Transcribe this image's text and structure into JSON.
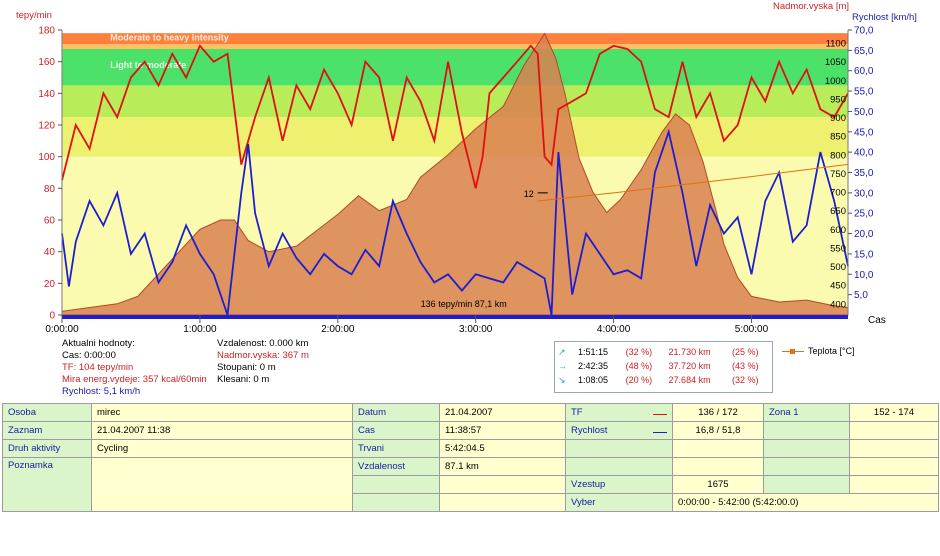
{
  "chart_data": {
    "type": "line",
    "x_label": "Cas",
    "x_ticks": [
      "0:00:00",
      "1:00:00",
      "2:00:00",
      "3:00:00",
      "4:00:00",
      "5:00:00"
    ],
    "x_range_hours": [
      0,
      5.7
    ],
    "axes": {
      "left": {
        "label": "tepy/min",
        "range": [
          0,
          180
        ],
        "ticks": [
          0,
          20,
          40,
          60,
          80,
          100,
          120,
          140,
          160,
          180
        ]
      },
      "right_altitude": {
        "label": "Nadmor.vyska [m]",
        "ticks": [
          400,
          450,
          500,
          550,
          600,
          650,
          700,
          750,
          800,
          850,
          900,
          950,
          1000,
          1050,
          1100
        ],
        "range": [
          370,
          1135
        ]
      },
      "right_speed": {
        "label": "Rychlost [km/h]",
        "range": [
          0,
          70
        ],
        "tick_labels": [
          "5,0",
          "10,0",
          "15,0",
          "20,0",
          "25,0",
          "30,0",
          "35,0",
          "40,0",
          "45,0",
          "50,0",
          "55,0",
          "60,0",
          "65,0",
          "70,0"
        ]
      }
    },
    "zones": [
      {
        "name": "Moderate to heavy intensity",
        "from": 171,
        "to": 178,
        "color": "#ff7f3c"
      },
      {
        "name": "",
        "from": 168,
        "to": 171,
        "color": "#ffc060"
      },
      {
        "name": "Light to moderate",
        "from": 145,
        "to": 168,
        "color": "#4ce26a"
      },
      {
        "name": "",
        "from": 125,
        "to": 145,
        "color": "#b8ec58"
      },
      {
        "name": "",
        "from": 100,
        "to": 125,
        "color": "#eef070"
      },
      {
        "name": "",
        "from": 0,
        "to": 100,
        "color": "#fbfbb0"
      }
    ],
    "series": [
      {
        "name": "Nadmor.vyska",
        "axis": "right_altitude",
        "color": "#d98050",
        "points": [
          [
            0,
            380
          ],
          [
            0.4,
            400
          ],
          [
            0.55,
            420
          ],
          [
            0.8,
            520
          ],
          [
            1.0,
            600
          ],
          [
            1.15,
            625
          ],
          [
            1.25,
            625
          ],
          [
            1.35,
            570
          ],
          [
            1.5,
            540
          ],
          [
            1.7,
            555
          ],
          [
            2.0,
            640
          ],
          [
            2.15,
            690
          ],
          [
            2.3,
            650
          ],
          [
            2.5,
            680
          ],
          [
            2.6,
            740
          ],
          [
            2.8,
            800
          ],
          [
            3.0,
            870
          ],
          [
            3.2,
            930
          ],
          [
            3.35,
            1040
          ],
          [
            3.5,
            1125
          ],
          [
            3.58,
            1060
          ],
          [
            3.65,
            960
          ],
          [
            3.75,
            790
          ],
          [
            3.85,
            700
          ],
          [
            3.95,
            645
          ],
          [
            4.05,
            680
          ],
          [
            4.2,
            760
          ],
          [
            4.35,
            860
          ],
          [
            4.45,
            910
          ],
          [
            4.55,
            880
          ],
          [
            4.65,
            780
          ],
          [
            4.75,
            640
          ],
          [
            4.8,
            560
          ],
          [
            4.9,
            470
          ],
          [
            5.0,
            420
          ],
          [
            5.2,
            405
          ],
          [
            5.4,
            410
          ],
          [
            5.6,
            395
          ],
          [
            5.7,
            390
          ]
        ]
      },
      {
        "name": "TF",
        "axis": "left",
        "color": "#e01010",
        "points": [
          [
            0,
            85
          ],
          [
            0.1,
            120
          ],
          [
            0.2,
            105
          ],
          [
            0.3,
            140
          ],
          [
            0.4,
            125
          ],
          [
            0.5,
            150
          ],
          [
            0.6,
            160
          ],
          [
            0.7,
            145
          ],
          [
            0.8,
            165
          ],
          [
            0.9,
            150
          ],
          [
            1.0,
            170
          ],
          [
            1.1,
            160
          ],
          [
            1.2,
            165
          ],
          [
            1.3,
            95
          ],
          [
            1.4,
            125
          ],
          [
            1.5,
            150
          ],
          [
            1.6,
            110
          ],
          [
            1.7,
            145
          ],
          [
            1.8,
            130
          ],
          [
            1.9,
            155
          ],
          [
            2.0,
            140
          ],
          [
            2.1,
            120
          ],
          [
            2.2,
            160
          ],
          [
            2.3,
            150
          ],
          [
            2.4,
            110
          ],
          [
            2.5,
            150
          ],
          [
            2.6,
            135
          ],
          [
            2.7,
            110
          ],
          [
            2.8,
            160
          ],
          [
            2.9,
            115
          ],
          [
            3.0,
            80
          ],
          [
            3.05,
            100
          ],
          [
            3.1,
            140
          ],
          [
            3.2,
            150
          ],
          [
            3.3,
            160
          ],
          [
            3.4,
            170
          ],
          [
            3.45,
            165
          ],
          [
            3.5,
            100
          ],
          [
            3.55,
            95
          ],
          [
            3.6,
            130
          ],
          [
            3.7,
            135
          ],
          [
            3.8,
            140
          ],
          [
            3.9,
            165
          ],
          [
            4.0,
            170
          ],
          [
            4.1,
            168
          ],
          [
            4.2,
            160
          ],
          [
            4.3,
            130
          ],
          [
            4.4,
            125
          ],
          [
            4.5,
            160
          ],
          [
            4.6,
            125
          ],
          [
            4.7,
            140
          ],
          [
            4.8,
            110
          ],
          [
            4.9,
            120
          ],
          [
            5.0,
            150
          ],
          [
            5.1,
            135
          ],
          [
            5.2,
            160
          ],
          [
            5.3,
            140
          ],
          [
            5.4,
            155
          ],
          [
            5.5,
            130
          ],
          [
            5.6,
            125
          ],
          [
            5.7,
            140
          ]
        ]
      },
      {
        "name": "Rychlost",
        "axis": "right_speed",
        "color": "#1e1ed0",
        "points": [
          [
            0,
            20
          ],
          [
            0.05,
            7
          ],
          [
            0.1,
            18
          ],
          [
            0.2,
            28
          ],
          [
            0.3,
            22
          ],
          [
            0.4,
            30
          ],
          [
            0.5,
            15
          ],
          [
            0.6,
            20
          ],
          [
            0.7,
            8
          ],
          [
            0.8,
            13
          ],
          [
            0.9,
            22
          ],
          [
            1.0,
            15
          ],
          [
            1.1,
            10
          ],
          [
            1.2,
            0
          ],
          [
            1.3,
            30
          ],
          [
            1.35,
            42
          ],
          [
            1.4,
            25
          ],
          [
            1.5,
            12
          ],
          [
            1.6,
            20
          ],
          [
            1.7,
            14
          ],
          [
            1.8,
            10
          ],
          [
            1.9,
            15
          ],
          [
            2.0,
            12
          ],
          [
            2.1,
            10
          ],
          [
            2.2,
            16
          ],
          [
            2.3,
            12
          ],
          [
            2.4,
            28
          ],
          [
            2.5,
            20
          ],
          [
            2.6,
            13
          ],
          [
            2.7,
            8
          ],
          [
            2.8,
            10
          ],
          [
            2.9,
            6
          ],
          [
            3.0,
            10
          ],
          [
            3.1,
            9
          ],
          [
            3.2,
            8
          ],
          [
            3.3,
            13
          ],
          [
            3.4,
            11
          ],
          [
            3.5,
            9
          ],
          [
            3.55,
            0
          ],
          [
            3.6,
            40
          ],
          [
            3.7,
            5
          ],
          [
            3.8,
            20
          ],
          [
            3.9,
            15
          ],
          [
            4.0,
            10
          ],
          [
            4.1,
            11
          ],
          [
            4.2,
            9
          ],
          [
            4.3,
            35
          ],
          [
            4.4,
            45
          ],
          [
            4.5,
            30
          ],
          [
            4.6,
            12
          ],
          [
            4.7,
            27
          ],
          [
            4.8,
            20
          ],
          [
            4.9,
            24
          ],
          [
            5.0,
            10
          ],
          [
            5.1,
            28
          ],
          [
            5.2,
            35
          ],
          [
            5.3,
            18
          ],
          [
            5.4,
            22
          ],
          [
            5.5,
            40
          ],
          [
            5.6,
            28
          ],
          [
            5.7,
            12
          ]
        ]
      },
      {
        "name": "Teplota [°C]",
        "axis": "right_speed",
        "color": "#e07010",
        "points": [
          [
            3.45,
            28
          ],
          [
            4.0,
            30
          ],
          [
            4.5,
            32
          ],
          [
            5.0,
            34
          ],
          [
            5.7,
            37
          ]
        ]
      }
    ],
    "annotations": [
      {
        "text": "12",
        "x": 3.45,
        "y_speed": 30
      },
      {
        "text": "136 tepy/min 87,1 km",
        "x": 3.0,
        "y_hr": 7
      }
    ]
  },
  "readout": {
    "title": "Aktualni hodnoty:",
    "cas": "Cas: 0:00:00",
    "tf": "TF: 104 tepy/min",
    "mira": "Mira energ.vydeje: 357 kcal/60min",
    "rychlost": "Rychlost: 5,1 km/h",
    "vzdalenost": "Vzdalenost: 0.000 km",
    "nadmor": "Nadmor.vyska: 367 m",
    "stoupani": "Stoupani: 0 m",
    "klesani": "Klesani: 0 m"
  },
  "stats_box": {
    "rows": [
      {
        "arrow": "↗",
        "time": "1:51:15",
        "pct": "(32 %)",
        "dist": "21.730 km",
        "dpct": "(25 %)"
      },
      {
        "arrow": "→",
        "time": "2:42:35",
        "pct": "(48 %)",
        "dist": "37.720 km",
        "dpct": "(43 %)"
      },
      {
        "arrow": "↘",
        "time": "1:08:05",
        "pct": "(20 %)",
        "dist": "27.684 km",
        "dpct": "(32 %)"
      }
    ]
  },
  "legend_temp": "Teplota [°C]",
  "info": {
    "osoba_label": "Osoba",
    "osoba": "mirec",
    "zaznam_label": "Zaznam",
    "zaznam": "21.04.2007 11:38",
    "druh_label": "Druh aktivity",
    "druh": "Cycling",
    "poznamka_label": "Poznamka",
    "datum_label": "Datum",
    "datum": "21.04.2007",
    "cas_label": "Cas",
    "cas": "11:38:57",
    "trvani_label": "Trvani",
    "trvani": "5:42:04.5",
    "vzdalenost_label": "Vzdalenost",
    "vzdalenost": "87.1 km",
    "tf_label": "TF",
    "tf": "136 / 172",
    "rychlost_label": "Rychlost",
    "rychlost": "16,8 / 51,8",
    "zona_label": "Zona 1",
    "zona": "152 - 174",
    "vzestup_label": "Vzestup",
    "vzestup": "1675",
    "vyber_label": "Vyber",
    "vyber": "0:00:00 - 5:42:00 (5:42:00.0)",
    "tf_color": "#e01010",
    "rychlost_color": "#1e1ed0"
  }
}
